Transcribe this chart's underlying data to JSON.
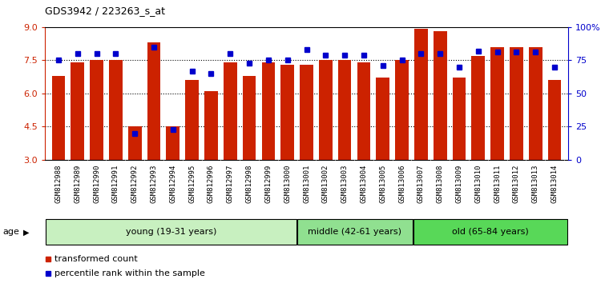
{
  "title": "GDS3942 / 223263_s_at",
  "samples": [
    "GSM812988",
    "GSM812989",
    "GSM812990",
    "GSM812991",
    "GSM812992",
    "GSM812993",
    "GSM812994",
    "GSM812995",
    "GSM812996",
    "GSM812997",
    "GSM812998",
    "GSM812999",
    "GSM813000",
    "GSM813001",
    "GSM813002",
    "GSM813003",
    "GSM813004",
    "GSM813005",
    "GSM813006",
    "GSM813007",
    "GSM813008",
    "GSM813009",
    "GSM813010",
    "GSM813011",
    "GSM813012",
    "GSM813013",
    "GSM813014"
  ],
  "red_values": [
    6.8,
    7.4,
    7.5,
    7.5,
    4.5,
    8.3,
    4.5,
    6.6,
    6.1,
    7.4,
    6.8,
    7.4,
    7.3,
    7.3,
    7.5,
    7.5,
    7.4,
    6.7,
    7.5,
    8.9,
    8.8,
    6.7,
    7.7,
    8.1,
    8.1,
    8.1,
    6.6
  ],
  "blue_values": [
    75,
    80,
    80,
    80,
    20,
    85,
    23,
    67,
    65,
    80,
    73,
    75,
    75,
    83,
    79,
    79,
    79,
    71,
    75,
    80,
    80,
    70,
    82,
    81,
    81,
    81,
    70
  ],
  "groups": [
    {
      "label": "young (19-31 years)",
      "start": 0,
      "end": 13,
      "color": "#c8f0c0"
    },
    {
      "label": "middle (42-61 years)",
      "start": 13,
      "end": 19,
      "color": "#90e090"
    },
    {
      "label": "old (65-84 years)",
      "start": 19,
      "end": 27,
      "color": "#58d858"
    }
  ],
  "ylim_left": [
    3,
    9
  ],
  "ylim_right": [
    0,
    100
  ],
  "yticks_left": [
    3,
    4.5,
    6,
    7.5,
    9
  ],
  "yticks_right": [
    0,
    25,
    50,
    75,
    100
  ],
  "ytick_labels_right": [
    "0",
    "25",
    "50",
    "75",
    "100%"
  ],
  "red_color": "#cc2200",
  "blue_color": "#0000cc",
  "bar_width": 0.7,
  "baseline": 3.0,
  "legend_red": "transformed count",
  "legend_blue": "percentile rank within the sample",
  "age_label": "age",
  "gridline_values": [
    4.5,
    6.0,
    7.5
  ],
  "xtick_bg_color": "#c8c8c8",
  "tick_fontsize": 6.5,
  "group_fontsize": 8,
  "legend_fontsize": 8,
  "title_fontsize": 9
}
